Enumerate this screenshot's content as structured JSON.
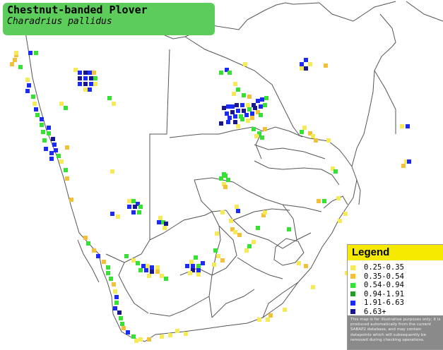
{
  "header": {
    "common_name": "Chestnut-banded Plover",
    "scientific_name": "Charadrius pallidus"
  },
  "legend": {
    "title": "Legend",
    "items": [
      {
        "range": "0.25-0.35",
        "color": "#f5ea5a"
      },
      {
        "range": "0.35-0.54",
        "color": "#f2c03a"
      },
      {
        "range": "0.54-0.94",
        "color": "#37df37"
      },
      {
        "range": "0.94-1.91",
        "color": "#2a9a2a"
      },
      {
        "range": "1.91-6.63",
        "color": "#1c2bf2"
      },
      {
        "range": "6.63+",
        "color": "#17178a"
      }
    ],
    "disclaimer": "This map is for illustrative purposes only; it is produced automatically from the current SABAP2 database, and may contain datapoints which will subsequently be removed during checking operations."
  }
}
